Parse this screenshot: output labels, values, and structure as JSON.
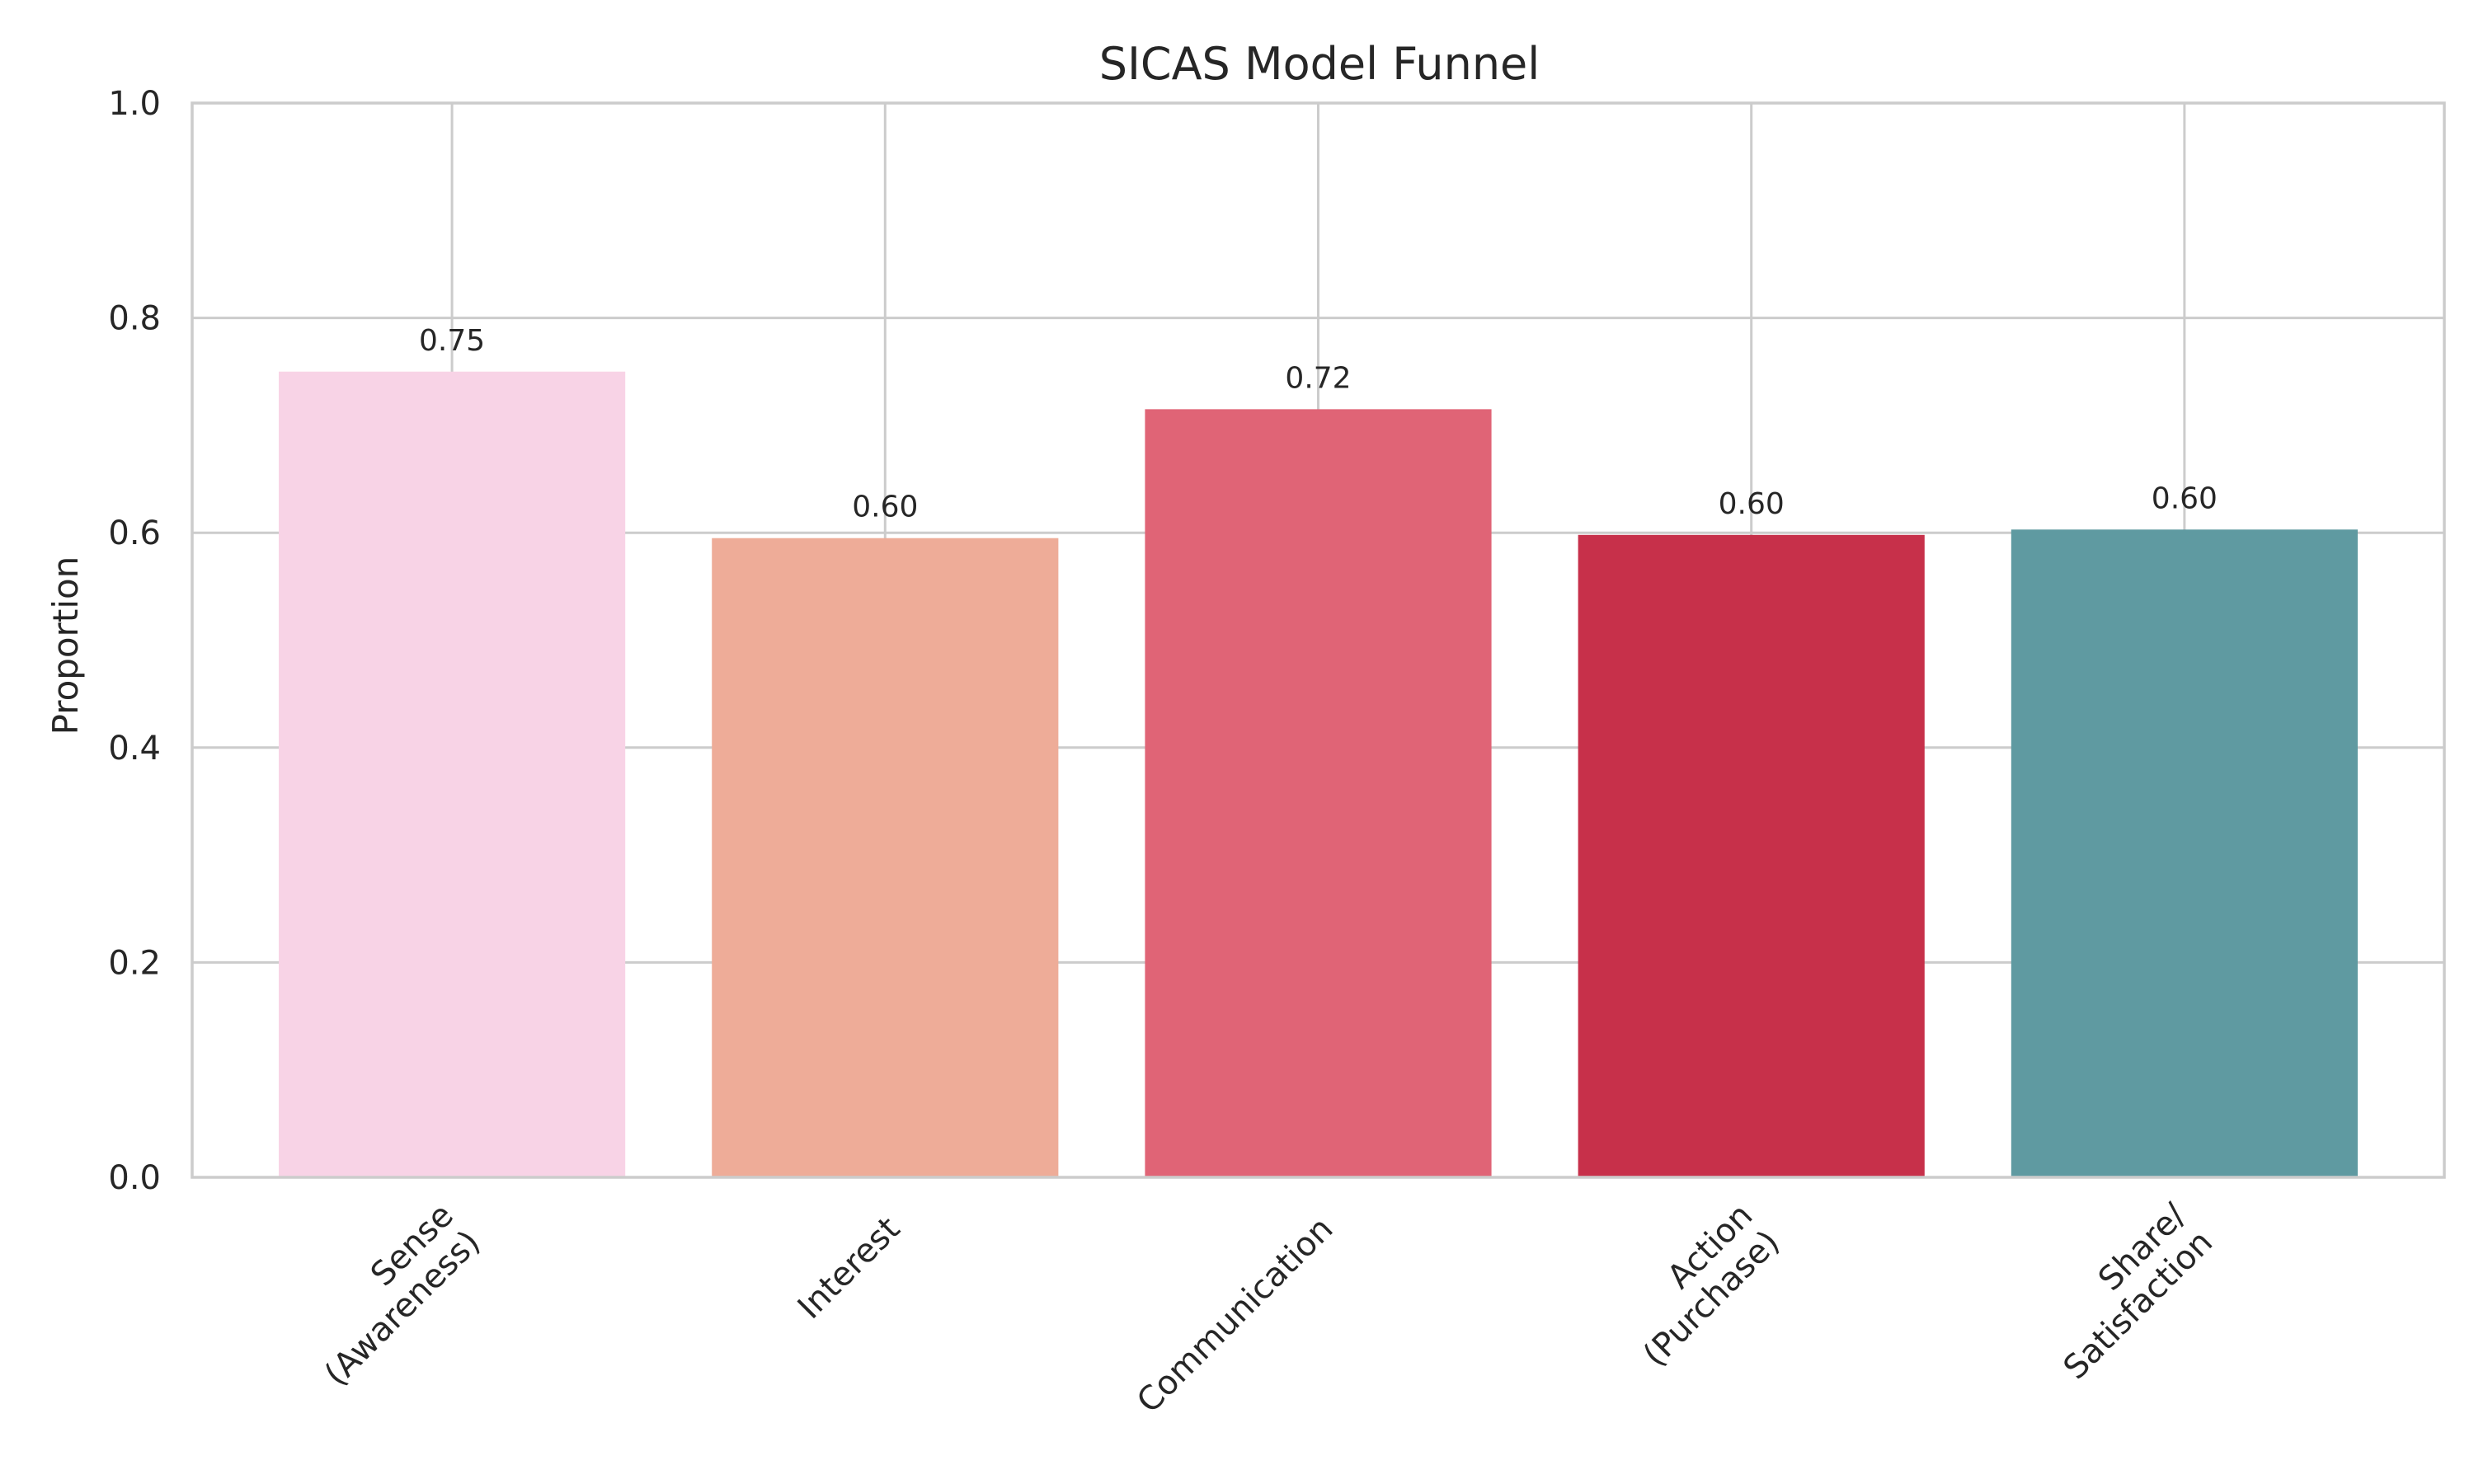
{
  "chart_data": {
    "type": "bar",
    "title": "SICAS Model Funnel",
    "xlabel": "",
    "ylabel": "Proportion",
    "ylim": [
      0,
      1.0
    ],
    "yticks": [
      "0.0",
      "0.2",
      "0.4",
      "0.6",
      "0.8",
      "1.0"
    ],
    "categories": [
      [
        "Sense",
        "(Awareness)"
      ],
      [
        "Interest"
      ],
      [
        "Communication"
      ],
      [
        "Action",
        "(Purchase)"
      ],
      [
        "Share/",
        "Satisfaction"
      ]
    ],
    "values": [
      0.75,
      0.595,
      0.715,
      0.598,
      0.603
    ],
    "value_labels": [
      "0.75",
      "0.60",
      "0.72",
      "0.60",
      "0.60"
    ],
    "colors": [
      "#f8d3e6",
      "#eeac98",
      "#e06476",
      "#c7304a",
      "#5f9aa1"
    ],
    "grid": true
  }
}
